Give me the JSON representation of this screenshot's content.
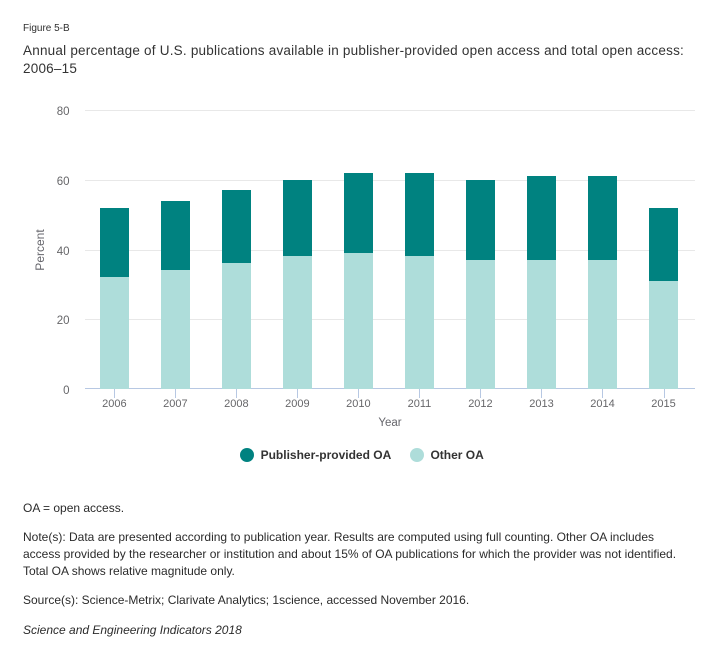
{
  "header": {
    "figure_label": "Figure 5-B",
    "title_line1": "Annual percentage of U.S. publications available in publisher-provided open access and total open access:",
    "title_line2": "2006–15"
  },
  "chart_data": {
    "type": "bar",
    "stacked": true,
    "title": "Annual percentage of U.S. publications available in publisher-provided open access and total open access: 2006–15",
    "xlabel": "Year",
    "ylabel": "Percent",
    "ylim": [
      0,
      80
    ],
    "yticks": [
      0,
      20,
      40,
      60,
      80
    ],
    "grid": true,
    "legend_position": "bottom",
    "categories": [
      "2006",
      "2007",
      "2008",
      "2009",
      "2010",
      "2011",
      "2012",
      "2013",
      "2014",
      "2015"
    ],
    "series": [
      {
        "name": "Other OA",
        "color": "#aeddda",
        "values": [
          32,
          34,
          36,
          38,
          39,
          38,
          37,
          37,
          37,
          31
        ]
      },
      {
        "name": "Publisher-provided OA",
        "color": "#008280",
        "values": [
          20,
          20,
          21,
          22,
          23,
          24,
          23,
          24,
          24,
          21
        ]
      }
    ],
    "totals": [
      52,
      54,
      57,
      60,
      62,
      62,
      60,
      61,
      61,
      52
    ],
    "legend_order": [
      "Publisher-provided OA",
      "Other OA"
    ]
  },
  "footer": {
    "abbreviation": "OA = open access.",
    "note": "Note(s): Data are presented according to publication year. Results are computed using full counting. Other OA includes access provided by the researcher or institution and about 15% of OA publications for which the provider was not identified. Total OA shows relative magnitude only.",
    "source": "Source(s): Science-Metrix; Clarivate Analytics; 1science, accessed November 2016.",
    "attribution": "Science and Engineering Indicators 2018"
  },
  "style": {
    "grid_color": "#e8e8e8",
    "axis_color": "#b7c8e3",
    "tick_label_color": "#666669"
  }
}
